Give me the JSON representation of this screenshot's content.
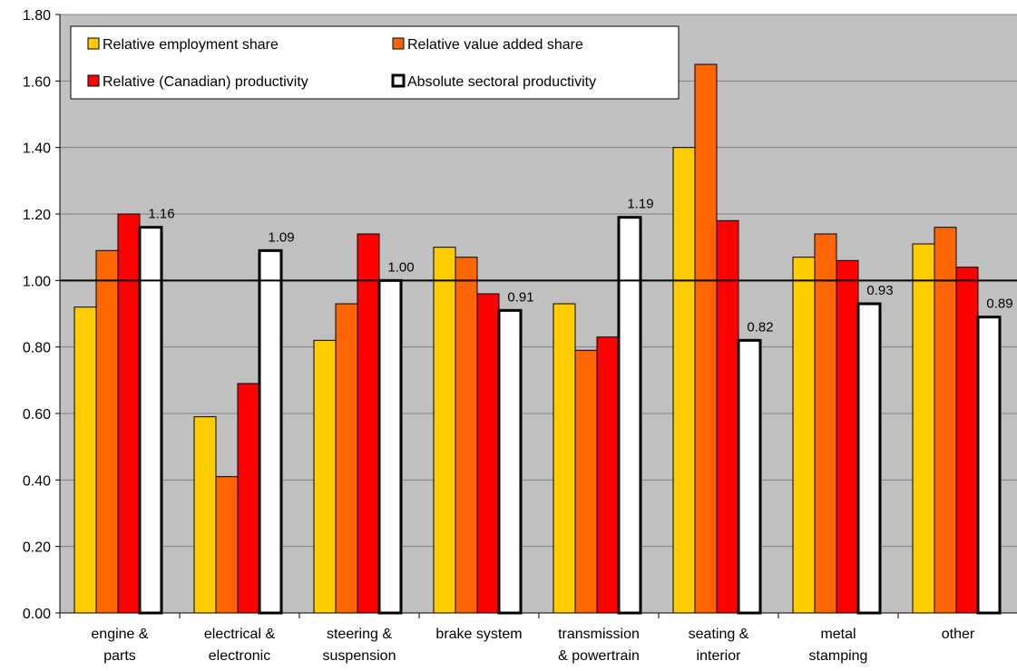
{
  "chart_data": {
    "type": "bar",
    "title": "",
    "xlabel": "",
    "ylabel": "",
    "ylim": [
      0,
      1.8
    ],
    "yticks": [
      "0.00",
      "0.20",
      "0.40",
      "0.60",
      "0.80",
      "1.00",
      "1.20",
      "1.40",
      "1.60",
      "1.80"
    ],
    "grid": true,
    "legend_position": "top-left",
    "reference_line": 1.0,
    "categories": [
      [
        "engine &",
        "parts"
      ],
      [
        "electrical &",
        "electronic"
      ],
      [
        "steering &",
        "suspension"
      ],
      [
        "brake system"
      ],
      [
        "transmission",
        "& powertrain"
      ],
      [
        "seating &",
        "interior"
      ],
      [
        "metal",
        "stamping"
      ],
      [
        "other"
      ]
    ],
    "series": [
      {
        "name": "Relative employment share",
        "color": "#FFCC00",
        "values": [
          0.92,
          0.59,
          0.82,
          1.1,
          0.93,
          1.4,
          1.07,
          1.11
        ]
      },
      {
        "name": "Relative value added share",
        "color": "#FF6600",
        "values": [
          1.09,
          0.41,
          0.93,
          1.07,
          0.79,
          1.65,
          1.14,
          1.16
        ]
      },
      {
        "name": "Relative (Canadian) productivity",
        "color": "#FF0000",
        "values": [
          1.2,
          0.69,
          1.14,
          0.96,
          0.83,
          1.18,
          1.06,
          1.04
        ]
      },
      {
        "name": "Absolute sectoral productivity",
        "color": "#FFFFFF",
        "values": [
          1.16,
          1.09,
          1.0,
          0.91,
          1.19,
          0.82,
          0.93,
          0.89
        ],
        "labels": [
          "1.16",
          "1.09",
          "1.00",
          "0.91",
          "1.19",
          "0.82",
          "0.93",
          "0.89"
        ]
      }
    ]
  }
}
